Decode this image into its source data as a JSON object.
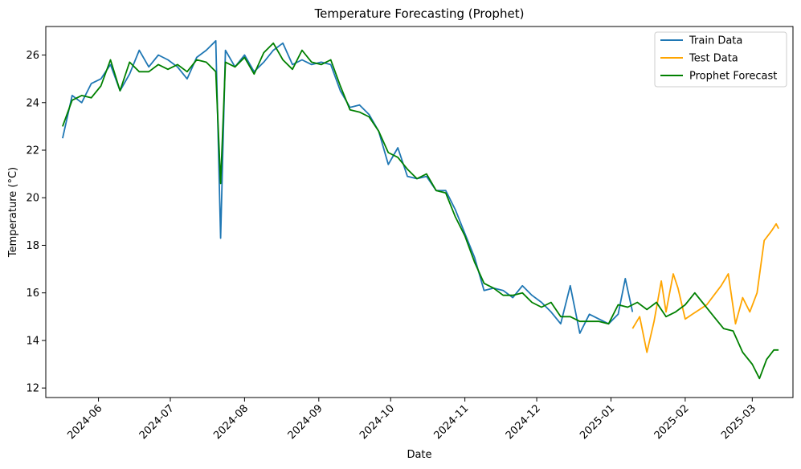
{
  "chart_data": {
    "type": "line",
    "title": "Temperature Forecasting (Prophet)",
    "xlabel": "Date",
    "ylabel": "Temperature (°C)",
    "xlim": [
      "2024-05-10",
      "2025-03-18"
    ],
    "ylim": [
      11.6,
      27.2
    ],
    "yticks": [
      12,
      14,
      16,
      18,
      20,
      22,
      24,
      26
    ],
    "xticks": [
      "2024-06",
      "2024-07",
      "2024-08",
      "2024-09",
      "2024-10",
      "2024-11",
      "2024-12",
      "2025-01",
      "2025-02",
      "2025-03"
    ],
    "xtick_dates": [
      "2024-06-01",
      "2024-07-01",
      "2024-08-01",
      "2024-09-01",
      "2024-10-01",
      "2024-11-01",
      "2024-12-01",
      "2025-01-01",
      "2025-02-01",
      "2025-03-01"
    ],
    "grid": false,
    "legend_position": "top-right",
    "series": [
      {
        "name": "Train Data",
        "color": "#1f77b4",
        "x": [
          "2024-05-17",
          "2024-05-21",
          "2024-05-25",
          "2024-05-29",
          "2024-06-02",
          "2024-06-06",
          "2024-06-10",
          "2024-06-14",
          "2024-06-18",
          "2024-06-22",
          "2024-06-26",
          "2024-06-30",
          "2024-07-04",
          "2024-07-08",
          "2024-07-12",
          "2024-07-16",
          "2024-07-20",
          "2024-07-22",
          "2024-07-24",
          "2024-07-28",
          "2024-08-01",
          "2024-08-05",
          "2024-08-09",
          "2024-08-13",
          "2024-08-17",
          "2024-08-21",
          "2024-08-25",
          "2024-08-29",
          "2024-09-02",
          "2024-09-06",
          "2024-09-10",
          "2024-09-14",
          "2024-09-18",
          "2024-09-22",
          "2024-09-26",
          "2024-09-30",
          "2024-10-04",
          "2024-10-08",
          "2024-10-12",
          "2024-10-16",
          "2024-10-20",
          "2024-10-24",
          "2024-10-28",
          "2024-11-01",
          "2024-11-05",
          "2024-11-09",
          "2024-11-13",
          "2024-11-17",
          "2024-11-21",
          "2024-11-25",
          "2024-11-29",
          "2024-12-03",
          "2024-12-07",
          "2024-12-11",
          "2024-12-15",
          "2024-12-19",
          "2024-12-23",
          "2024-12-27",
          "2024-12-31",
          "2025-01-04",
          "2025-01-07",
          "2025-01-10"
        ],
        "y": [
          22.5,
          24.3,
          24.0,
          24.8,
          25.0,
          25.6,
          24.5,
          25.2,
          26.2,
          25.5,
          26.0,
          25.8,
          25.5,
          25.0,
          25.9,
          26.2,
          26.6,
          18.3,
          26.2,
          25.5,
          26.0,
          25.3,
          25.7,
          26.2,
          26.5,
          25.6,
          25.8,
          25.6,
          25.7,
          25.6,
          24.5,
          23.8,
          23.9,
          23.5,
          22.8,
          21.4,
          22.1,
          20.9,
          20.8,
          20.9,
          20.3,
          20.3,
          19.5,
          18.5,
          17.5,
          16.1,
          16.2,
          16.1,
          15.8,
          16.3,
          15.9,
          15.6,
          15.2,
          14.7,
          16.3,
          14.3,
          15.1,
          14.9,
          14.7,
          15.1,
          16.6,
          15.2
        ]
      },
      {
        "name": "Test Data",
        "color": "#ffa500",
        "x": [
          "2025-01-10",
          "2025-01-13",
          "2025-01-16",
          "2025-01-19",
          "2025-01-22",
          "2025-01-24",
          "2025-01-27",
          "2025-01-29",
          "2025-02-01",
          "2025-02-04",
          "2025-02-07",
          "2025-02-10",
          "2025-02-13",
          "2025-02-16",
          "2025-02-19",
          "2025-02-22",
          "2025-02-25",
          "2025-02-28",
          "2025-03-03",
          "2025-03-06",
          "2025-03-09",
          "2025-03-11",
          "2025-03-12"
        ],
        "y": [
          14.5,
          15.0,
          13.5,
          14.8,
          16.5,
          15.2,
          16.8,
          16.2,
          14.9,
          15.1,
          15.3,
          15.5,
          15.9,
          16.3,
          16.8,
          14.7,
          15.8,
          15.2,
          16.0,
          18.2,
          18.6,
          18.9,
          18.7
        ]
      },
      {
        "name": "Prophet Forecast",
        "color": "#008000",
        "x": [
          "2024-05-17",
          "2024-05-21",
          "2024-05-25",
          "2024-05-29",
          "2024-06-02",
          "2024-06-06",
          "2024-06-10",
          "2024-06-14",
          "2024-06-18",
          "2024-06-22",
          "2024-06-26",
          "2024-06-30",
          "2024-07-04",
          "2024-07-08",
          "2024-07-12",
          "2024-07-16",
          "2024-07-20",
          "2024-07-22",
          "2024-07-24",
          "2024-07-28",
          "2024-08-01",
          "2024-08-05",
          "2024-08-09",
          "2024-08-13",
          "2024-08-17",
          "2024-08-21",
          "2024-08-25",
          "2024-08-29",
          "2024-09-02",
          "2024-09-06",
          "2024-09-10",
          "2024-09-14",
          "2024-09-18",
          "2024-09-22",
          "2024-09-26",
          "2024-09-30",
          "2024-10-04",
          "2024-10-08",
          "2024-10-12",
          "2024-10-16",
          "2024-10-20",
          "2024-10-24",
          "2024-10-28",
          "2024-11-01",
          "2024-11-05",
          "2024-11-09",
          "2024-11-13",
          "2024-11-17",
          "2024-11-21",
          "2024-11-25",
          "2024-11-29",
          "2024-12-03",
          "2024-12-07",
          "2024-12-11",
          "2024-12-15",
          "2024-12-19",
          "2024-12-23",
          "2024-12-27",
          "2024-12-31",
          "2025-01-04",
          "2025-01-08",
          "2025-01-12",
          "2025-01-16",
          "2025-01-20",
          "2025-01-24",
          "2025-01-28",
          "2025-02-01",
          "2025-02-05",
          "2025-02-09",
          "2025-02-13",
          "2025-02-17",
          "2025-02-21",
          "2025-02-25",
          "2025-03-01",
          "2025-03-04",
          "2025-03-07",
          "2025-03-10",
          "2025-03-12"
        ],
        "y": [
          23.0,
          24.1,
          24.3,
          24.2,
          24.7,
          25.8,
          24.5,
          25.7,
          25.3,
          25.3,
          25.6,
          25.4,
          25.6,
          25.3,
          25.8,
          25.7,
          25.3,
          20.6,
          25.7,
          25.5,
          25.9,
          25.2,
          26.1,
          26.5,
          25.8,
          25.4,
          26.2,
          25.7,
          25.6,
          25.8,
          24.7,
          23.7,
          23.6,
          23.4,
          22.8,
          21.9,
          21.7,
          21.2,
          20.8,
          21.0,
          20.3,
          20.2,
          19.2,
          18.4,
          17.3,
          16.4,
          16.2,
          15.9,
          15.9,
          16.0,
          15.6,
          15.4,
          15.6,
          15.0,
          15.0,
          14.8,
          14.8,
          14.8,
          14.7,
          15.5,
          15.4,
          15.6,
          15.3,
          15.6,
          15.0,
          15.2,
          15.5,
          16.0,
          15.5,
          15.0,
          14.5,
          14.4,
          13.5,
          13.0,
          12.4,
          13.2,
          13.6,
          13.6
        ]
      }
    ]
  }
}
